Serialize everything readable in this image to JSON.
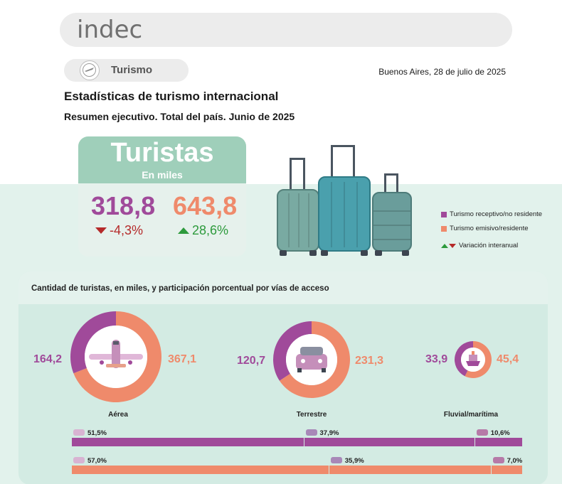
{
  "header": {
    "logo": "indec",
    "section": "Turismo",
    "date": "Buenos Aires, 28 de julio de 2025",
    "title": "Estadísticas de turismo internacional",
    "subtitle": "Resumen ejecutivo. Total del país. Junio de 2025"
  },
  "tourists": {
    "title": "Turistas",
    "unit": "En miles",
    "receptivo_value": "318,8",
    "receptivo_variation": "-4,3%",
    "emisivo_value": "643,8",
    "emisivo_variation": "28,6%"
  },
  "legend": {
    "receptivo": "Turismo receptivo/no residente",
    "emisivo": "Turismo emisivo/residente",
    "variation": "Variación interanual"
  },
  "colors": {
    "receptivo": "#a04a9a",
    "emisivo": "#ef8a6b",
    "down": "#b52a2a",
    "up": "#2d9a3c"
  },
  "access": {
    "title": "Cantidad de turistas, en miles, y participación porcentual por vías de acceso"
  },
  "chart_data": [
    {
      "type": "pie",
      "name": "Aérea",
      "categories": [
        "Turismo receptivo/no residente",
        "Turismo emisivo/residente"
      ],
      "values": [
        164.2,
        367.1
      ],
      "labels": [
        "164,2",
        "367,1"
      ],
      "icon": "airplane-icon"
    },
    {
      "type": "pie",
      "name": "Terrestre",
      "categories": [
        "Turismo receptivo/no residente",
        "Turismo emisivo/residente"
      ],
      "values": [
        120.7,
        231.3
      ],
      "labels": [
        "120,7",
        "231,3"
      ],
      "icon": "car-icon"
    },
    {
      "type": "pie",
      "name": "Fluvial/marítima",
      "categories": [
        "Turismo receptivo/no residente",
        "Turismo emisivo/residente"
      ],
      "values": [
        33.9,
        45.4
      ],
      "labels": [
        "33,9",
        "45,4"
      ],
      "icon": "ship-icon"
    },
    {
      "type": "bar",
      "orientation": "horizontal-stacked",
      "categories": [
        "Aérea",
        "Terrestre",
        "Fluvial/marítima"
      ],
      "series": [
        {
          "name": "Turismo receptivo/no residente",
          "values": [
            51.5,
            37.9,
            10.6
          ],
          "labels": [
            "51,5%",
            "37,9%",
            "10,6%"
          ]
        },
        {
          "name": "Turismo emisivo/residente",
          "values": [
            57.0,
            35.9,
            7.0
          ],
          "labels": [
            "57,0%",
            "35,9%",
            "7,0%"
          ]
        }
      ]
    }
  ]
}
